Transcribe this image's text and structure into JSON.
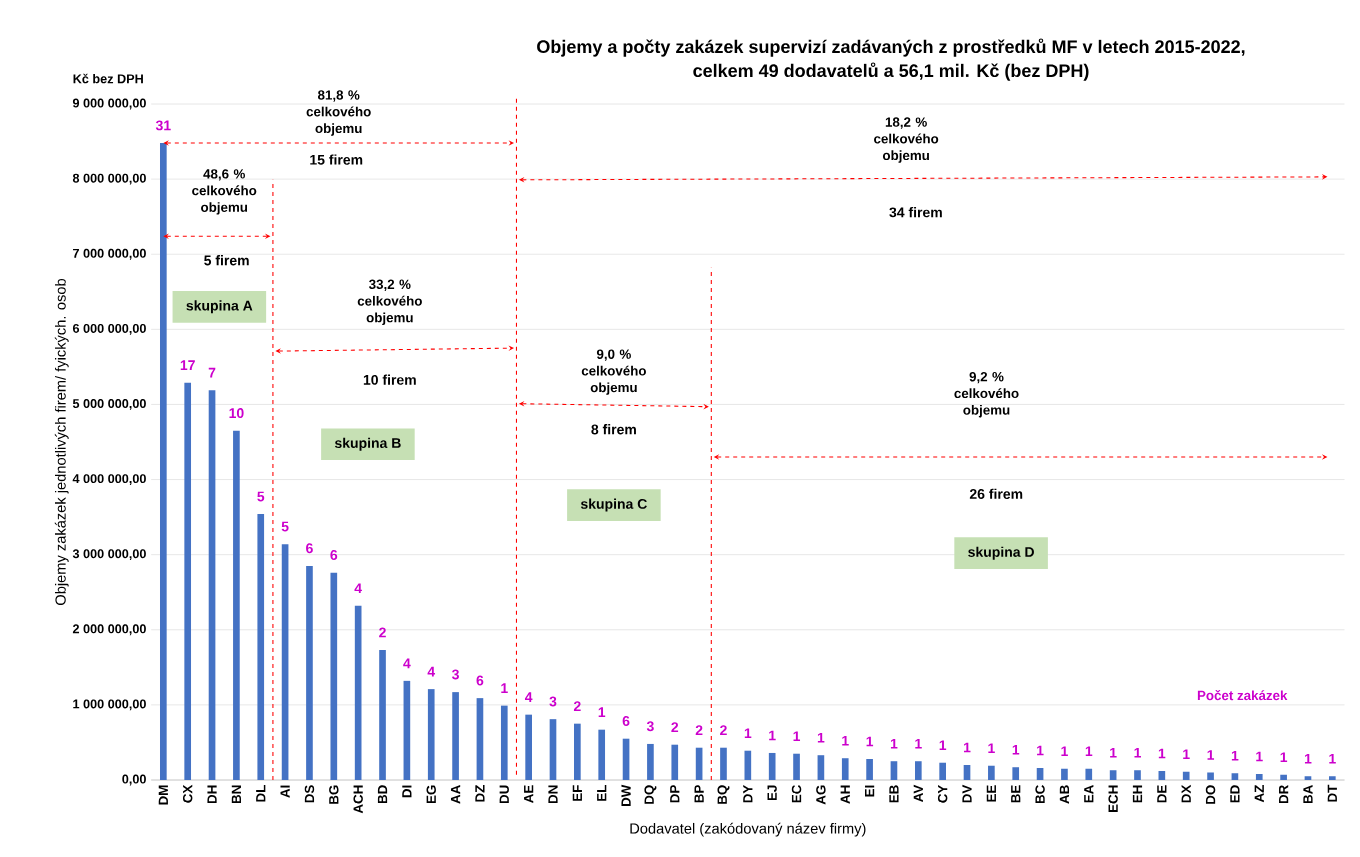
{
  "chart_data": {
    "type": "bar",
    "title": "Objemy  a počty zakázek supervizí zadávaných z prostředků MF  v letech 2015-2022,",
    "subtitle": "celkem 49 dodavatelů a 56,1 mil. Kč (bez DPH)",
    "xlabel": "Dodavatel (zakódovaný název firmy)",
    "ylabel": "Objemy zakázek jednotlivých firem/ fyických. osob",
    "categories": [
      "DM",
      "CX",
      "DH",
      "BN",
      "DL",
      "AI",
      "DS",
      "BG",
      "ACH",
      "BD",
      "DI",
      "EG",
      "AA",
      "DZ",
      "DU",
      "AE",
      "DN",
      "EF",
      "EL",
      "DW",
      "DQ",
      "DP",
      "BP",
      "BQ",
      "DY",
      "EJ",
      "EC",
      "AG",
      "AH",
      "EI",
      "EB",
      "AV",
      "CY",
      "DV",
      "EE",
      "BE",
      "BC",
      "AB",
      "EA",
      "ECH",
      "EH",
      "DE",
      "DX",
      "DO",
      "ED",
      "AZ",
      "DR",
      "BA",
      "DT"
    ],
    "values": [
      8480000,
      5290000,
      5190000,
      4650000,
      3540000,
      3140000,
      2850000,
      2760000,
      2320000,
      1730000,
      1320000,
      1210000,
      1170000,
      1090000,
      990000,
      870000,
      810000,
      750000,
      670000,
      550000,
      480000,
      470000,
      430000,
      430000,
      390000,
      360000,
      350000,
      330000,
      290000,
      280000,
      250000,
      250000,
      230000,
      200000,
      190000,
      170000,
      160000,
      150000,
      150000,
      130000,
      130000,
      120000,
      110000,
      100000,
      90000,
      80000,
      70000,
      50000,
      50000
    ],
    "color": "#4472c4",
    "ylim": [
      0,
      9000000
    ],
    "yticks": [
      {
        "value": 0,
        "label": "0,00"
      },
      {
        "value": 1000000,
        "label": "1 000 000,00"
      },
      {
        "value": 2000000,
        "label": "2 000 000,00"
      },
      {
        "value": 3000000,
        "label": "3 000 000,00"
      },
      {
        "value": 4000000,
        "label": "4 000 000,00"
      },
      {
        "value": 5000000,
        "label": "5 000 000,00"
      },
      {
        "value": 6000000,
        "label": "6 000 000,00"
      },
      {
        "value": 7000000,
        "label": "7 000 000,00"
      },
      {
        "value": 8000000,
        "label": "8 000 000,00"
      },
      {
        "value": 9000000,
        "label": "9 000 000,00"
      }
    ],
    "grid": "y",
    "annotations": [
      "Kč bez DPH",
      "81,8 % celkového objemu",
      "15 firem",
      "48,6 % celkového objemu",
      "5 firem",
      "18,2 % celkového objemu",
      "34 firem",
      "33,2 % celkového objemu",
      "10 firem",
      "9,0 % celkového objemu",
      "8 firem",
      "9,2 % celkového objemu",
      "26 firem",
      "skupina A",
      "skupina B",
      "skupina C",
      "skupina D",
      "Počet zakázek",
      {
        "text": "31",
        "x": "DM",
        "y": 8480000
      },
      {
        "text": "17",
        "x": "CX",
        "y": 5290000
      },
      {
        "text": "7",
        "x": "DH",
        "y": 5190000
      },
      {
        "text": "10",
        "x": "BN",
        "y": 4650000
      },
      {
        "text": "5",
        "x": "DL",
        "y": 3540000
      },
      {
        "text": "5",
        "x": "AI",
        "y": 3140000
      },
      {
        "text": "6",
        "x": "DS",
        "y": 2850000
      },
      {
        "text": "6",
        "x": "BG",
        "y": 2760000
      },
      {
        "text": "4",
        "x": "ACH",
        "y": 2320000
      },
      {
        "text": "2",
        "x": "BD",
        "y": 1730000
      },
      {
        "text": "4",
        "x": "DI",
        "y": 1320000
      },
      {
        "text": "4",
        "x": "EG",
        "y": 1210000
      },
      {
        "text": "3",
        "x": "AA",
        "y": 1170000
      },
      {
        "text": "6",
        "x": "DZ",
        "y": 1090000
      },
      {
        "text": "1",
        "x": "DU",
        "y": 990000
      },
      {
        "text": "4",
        "x": "AE",
        "y": 870000
      },
      {
        "text": "3",
        "x": "DN",
        "y": 810000
      },
      {
        "text": "2",
        "x": "EF",
        "y": 750000
      },
      {
        "text": "1",
        "x": "EL",
        "y": 670000
      },
      {
        "text": "6",
        "x": "DW",
        "y": 550000
      },
      {
        "text": "3",
        "x": "DQ",
        "y": 480000
      },
      {
        "text": "2",
        "x": "DP",
        "y": 470000
      },
      {
        "text": "2",
        "x": "BP",
        "y": 430000
      },
      {
        "text": "2",
        "x": "BQ",
        "y": 430000
      },
      {
        "text": "1",
        "x": "DY",
        "y": 390000
      },
      {
        "text": "1",
        "x": "EJ",
        "y": 360000
      },
      {
        "text": "1",
        "x": "EC",
        "y": 350000
      },
      {
        "text": "1",
        "x": "AG",
        "y": 330000
      },
      {
        "text": "1",
        "x": "AH",
        "y": 290000
      },
      {
        "text": "1",
        "x": "EI",
        "y": 280000
      },
      {
        "text": "1",
        "x": "EB",
        "y": 250000
      },
      {
        "text": "1",
        "x": "AV",
        "y": 250000
      },
      {
        "text": "1",
        "x": "CY",
        "y": 230000
      },
      {
        "text": "1",
        "x": "DV",
        "y": 200000
      },
      {
        "text": "1",
        "x": "EE",
        "y": 190000
      },
      {
        "text": "1",
        "x": "BE",
        "y": 170000
      },
      {
        "text": "1",
        "x": "BC",
        "y": 160000
      },
      {
        "text": "1",
        "x": "AB",
        "y": 150000
      },
      {
        "text": "1",
        "x": "EA",
        "y": 150000
      },
      {
        "text": "1",
        "x": "ECH",
        "y": 130000
      },
      {
        "text": "1",
        "x": "EH",
        "y": 130000
      },
      {
        "text": "1",
        "x": "DE",
        "y": 120000
      },
      {
        "text": "1",
        "x": "DX",
        "y": 110000
      },
      {
        "text": "1",
        "x": "DO",
        "y": 100000
      },
      {
        "text": "1",
        "x": "ED",
        "y": 90000
      },
      {
        "text": "1",
        "x": "AZ",
        "y": 80000
      },
      {
        "text": "1",
        "x": "DR",
        "y": 70000
      },
      {
        "text": "1",
        "x": "BA",
        "y": 50000
      },
      {
        "text": "1",
        "x": "DT",
        "y": 50000
      }
    ]
  }
}
